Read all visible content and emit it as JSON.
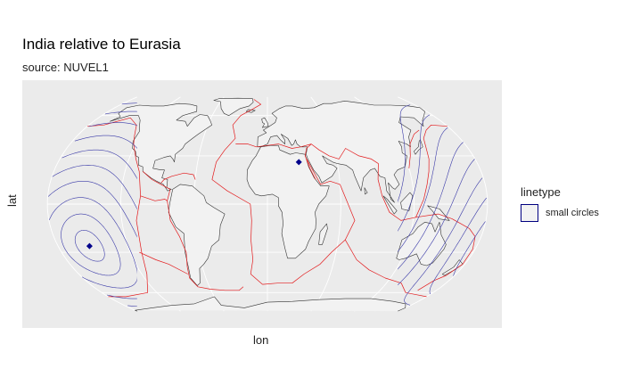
{
  "title": "India relative to Eurasia",
  "subtitle": "source: NUVEL1",
  "axes": {
    "xlabel": "lon",
    "ylabel": "lat"
  },
  "legend": {
    "title": "linetype",
    "entries": [
      {
        "label": "small circles",
        "color": "#000080"
      }
    ]
  },
  "colors": {
    "panel": "#ebebeb",
    "graticule": "#ffffff",
    "land": "#f2f2f2",
    "coastline": "#333333",
    "plate_boundaries": "#e31a1c",
    "small_circles": "#3a3aa8",
    "poles": "#00008b"
  },
  "chart_data": {
    "type": "map",
    "projection": "Equal Earth",
    "graticule": true,
    "legend_position": "right",
    "layers": [
      "world countries",
      "plate boundaries",
      "small circles"
    ],
    "euler_pole": {
      "lon": 27,
      "lat": 26
    },
    "antipole": {
      "lon": -153,
      "lat": -26
    },
    "small_circle_radii_deg": [
      10,
      20,
      30,
      40,
      50,
      60,
      70,
      80,
      90,
      100,
      110,
      120,
      130,
      140,
      150,
      160,
      170
    ]
  }
}
